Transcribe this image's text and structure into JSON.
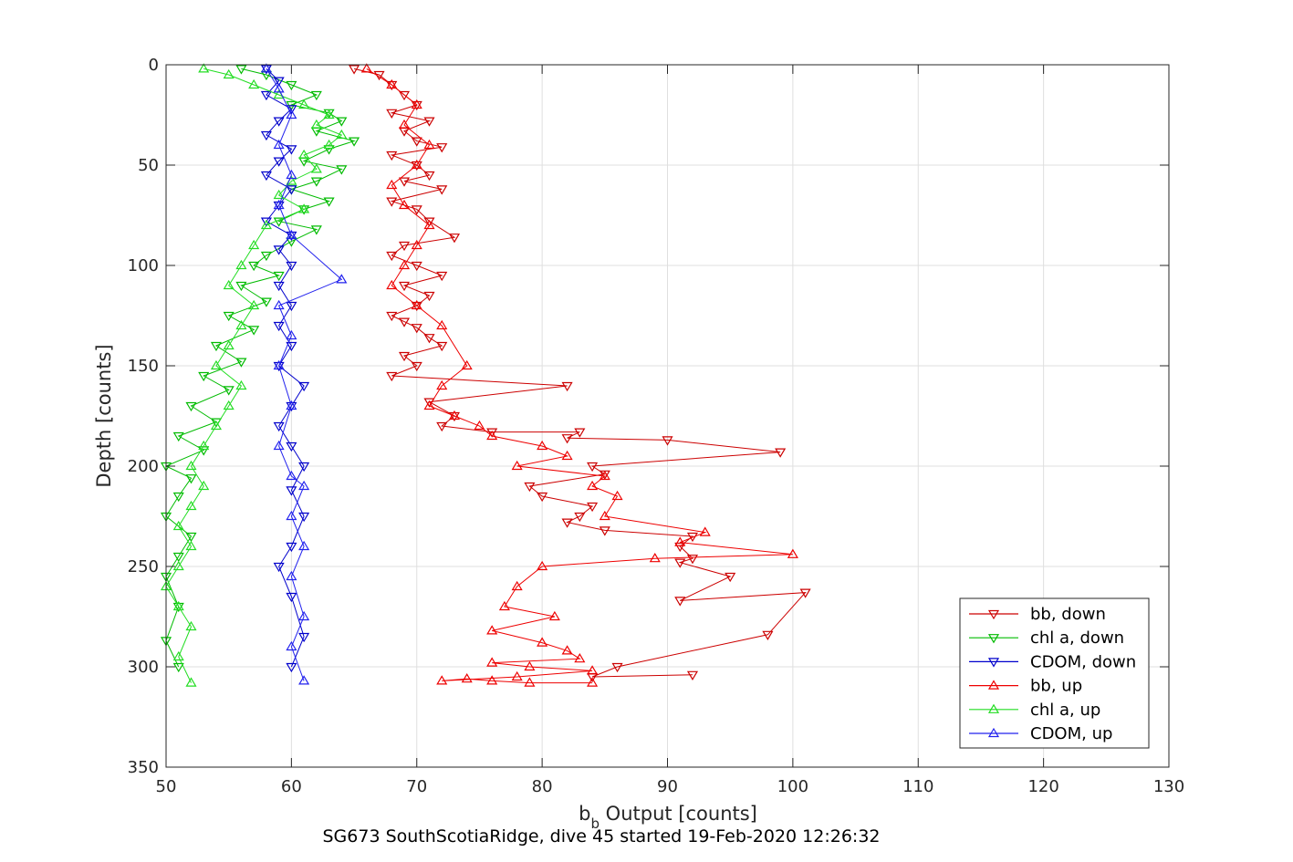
{
  "chart_data": {
    "type": "line",
    "subtitle": "SG673 SouthScotiaRidge, dive 45 started 19-Feb-2020 12:26:32",
    "xlabel_main": "b",
    "xlabel_sub": "b",
    "xlabel_rest": " Output [counts]",
    "ylabel": "Depth [counts]",
    "xlim": [
      50,
      130
    ],
    "ylim": [
      0,
      350
    ],
    "y_reversed": true,
    "grid": true,
    "xticks": [
      50,
      60,
      70,
      80,
      90,
      100,
      110,
      120,
      130
    ],
    "yticks": [
      0,
      50,
      100,
      150,
      200,
      250,
      300,
      350
    ],
    "legend_position": "bottom-right",
    "series": [
      {
        "name": "bb, down",
        "color": "#cc0000",
        "marker": "triangle-down",
        "x": [
          65,
          67,
          68,
          69,
          70,
          68,
          71,
          69,
          70,
          72,
          68,
          70,
          71,
          69,
          72,
          68,
          70,
          71,
          73,
          69,
          68,
          70,
          72,
          69,
          71,
          70,
          68,
          69,
          70,
          71,
          72,
          69,
          70,
          68,
          82,
          71,
          73,
          72,
          76,
          83,
          82,
          90,
          99,
          84,
          85,
          79,
          80,
          84,
          83,
          82,
          85,
          92,
          91,
          92,
          91,
          95,
          91,
          101,
          98,
          86,
          84,
          92
        ],
        "y": [
          2,
          5,
          10,
          15,
          20,
          24,
          28,
          33,
          38,
          41,
          45,
          50,
          55,
          58,
          62,
          68,
          72,
          78,
          86,
          90,
          95,
          100,
          105,
          110,
          115,
          120,
          125,
          128,
          131,
          136,
          140,
          145,
          150,
          155,
          160,
          168,
          175,
          180,
          183,
          183,
          186,
          187,
          193,
          200,
          204,
          210,
          215,
          220,
          225,
          228,
          232,
          235,
          240,
          246,
          248,
          255,
          267,
          263,
          284,
          300,
          305,
          304
        ]
      },
      {
        "name": "chl a, down",
        "color": "#00bb00",
        "marker": "triangle-down",
        "x": [
          56,
          58,
          60,
          62,
          60,
          63,
          64,
          62,
          65,
          63,
          61,
          64,
          62,
          60,
          63,
          61,
          59,
          62,
          60,
          58,
          57,
          59,
          56,
          58,
          55,
          57,
          54,
          56,
          53,
          55,
          52,
          54,
          51,
          53,
          50,
          52,
          51,
          50,
          52,
          51,
          50,
          51,
          50,
          51
        ],
        "y": [
          2,
          5,
          10,
          15,
          20,
          24,
          28,
          33,
          38,
          42,
          48,
          52,
          58,
          62,
          68,
          72,
          78,
          82,
          88,
          95,
          100,
          105,
          110,
          118,
          125,
          132,
          140,
          148,
          155,
          162,
          170,
          178,
          185,
          192,
          200,
          206,
          215,
          225,
          235,
          245,
          255,
          270,
          287,
          300
        ]
      },
      {
        "name": "CDOM, down",
        "color": "#0000cc",
        "marker": "triangle-down",
        "x": [
          58,
          59,
          58,
          60,
          59,
          58,
          60,
          59,
          58,
          60,
          59,
          58,
          60,
          59,
          60,
          59,
          60,
          59,
          60,
          59,
          61,
          60,
          59,
          60,
          61,
          60,
          61,
          60,
          59,
          60,
          61,
          60
        ],
        "y": [
          2,
          8,
          15,
          22,
          28,
          35,
          42,
          48,
          55,
          62,
          70,
          78,
          85,
          92,
          100,
          110,
          120,
          130,
          140,
          150,
          160,
          170,
          180,
          190,
          200,
          212,
          225,
          240,
          250,
          265,
          285,
          300
        ]
      },
      {
        "name": "bb, up",
        "color": "#ee0000",
        "marker": "triangle-up",
        "x": [
          66,
          68,
          70,
          69,
          71,
          70,
          68,
          69,
          71,
          70,
          69,
          68,
          70,
          72,
          74,
          72,
          71,
          73,
          75,
          76,
          80,
          82,
          78,
          85,
          84,
          86,
          85,
          93,
          91,
          100,
          89,
          80,
          78,
          77,
          81,
          76,
          80,
          82,
          83,
          76,
          79,
          84,
          78,
          72,
          74,
          76,
          79,
          84
        ],
        "y": [
          2,
          10,
          20,
          30,
          40,
          50,
          60,
          70,
          80,
          90,
          100,
          110,
          120,
          130,
          150,
          160,
          170,
          175,
          180,
          185,
          190,
          195,
          200,
          205,
          210,
          215,
          225,
          233,
          238,
          244,
          246,
          250,
          260,
          270,
          275,
          282,
          288,
          292,
          296,
          298,
          300,
          302,
          305,
          307,
          306,
          307,
          308,
          308
        ]
      },
      {
        "name": "chl a, up",
        "color": "#22dd22",
        "marker": "triangle-up",
        "x": [
          53,
          55,
          57,
          59,
          61,
          63,
          62,
          64,
          63,
          61,
          62,
          60,
          59,
          61,
          58,
          57,
          56,
          55,
          57,
          56,
          55,
          54,
          56,
          55,
          54,
          53,
          52,
          53,
          52,
          51,
          52,
          51,
          50,
          51,
          52,
          51,
          52
        ],
        "y": [
          2,
          5,
          10,
          15,
          20,
          25,
          30,
          35,
          40,
          45,
          52,
          58,
          65,
          72,
          80,
          90,
          100,
          110,
          120,
          130,
          140,
          150,
          160,
          170,
          180,
          190,
          200,
          210,
          220,
          230,
          240,
          250,
          260,
          270,
          280,
          295,
          308
        ]
      },
      {
        "name": "CDOM, up",
        "color": "#2222ee",
        "marker": "triangle-up",
        "x": [
          58,
          59,
          60,
          59,
          60,
          59,
          60,
          64,
          59,
          60,
          59,
          60,
          59,
          60,
          61,
          60,
          61,
          60,
          61,
          60,
          61
        ],
        "y": [
          2,
          12,
          25,
          40,
          55,
          70,
          85,
          107,
          120,
          135,
          150,
          170,
          190,
          205,
          210,
          225,
          240,
          255,
          275,
          290,
          307
        ]
      }
    ]
  }
}
